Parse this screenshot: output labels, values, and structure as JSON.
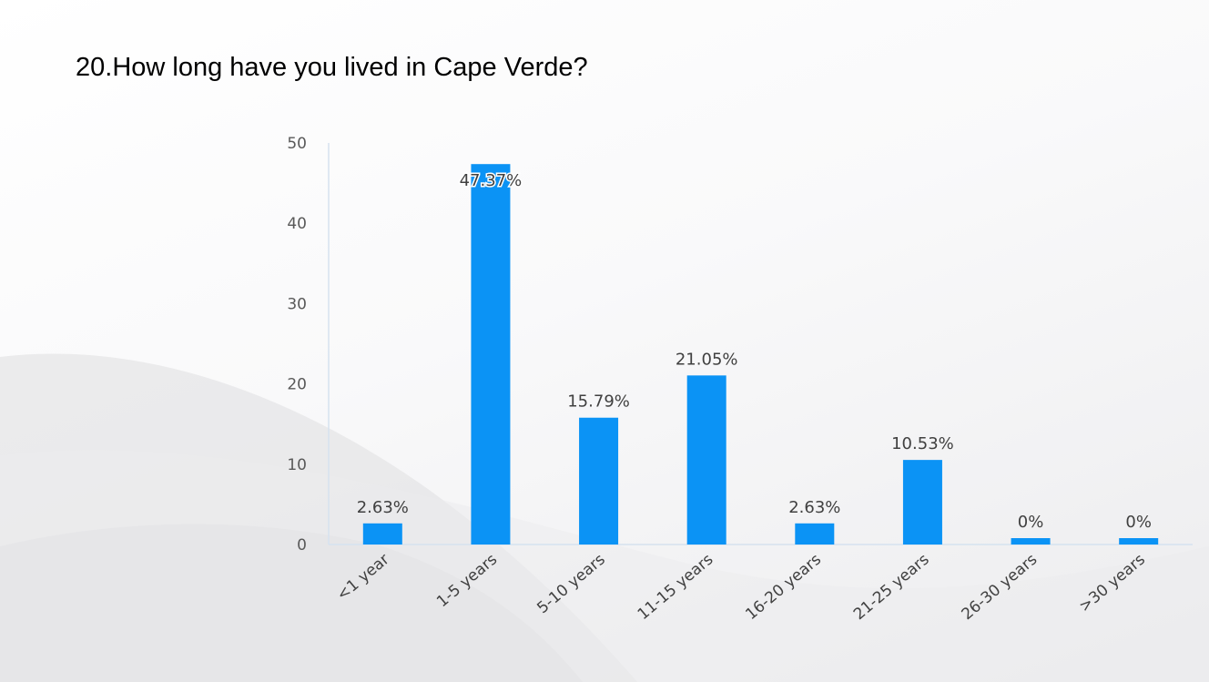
{
  "slide": {
    "title": "20.How long have you lived in Cape Verde?"
  },
  "chart_data": {
    "type": "bar",
    "title": "",
    "xlabel": "",
    "ylabel": "",
    "ylim": [
      0,
      50
    ],
    "yticks": [
      "0",
      "10",
      "20",
      "30",
      "40",
      "50"
    ],
    "categories": [
      "<1 year",
      "1-5 years",
      "5-10 years",
      "11-15 years",
      "16-20 years",
      "21-25 years",
      "26-30 years",
      ">30 years"
    ],
    "values": [
      2.63,
      47.37,
      15.79,
      21.05,
      2.63,
      10.53,
      0,
      0
    ],
    "data_labels": [
      "2.63%",
      "47.37%",
      "15.79%",
      "21.05%",
      "2.63%",
      "10.53%",
      "0%",
      "0%"
    ],
    "bar_color": "#0b93f5",
    "grid": false,
    "legend": "none"
  }
}
